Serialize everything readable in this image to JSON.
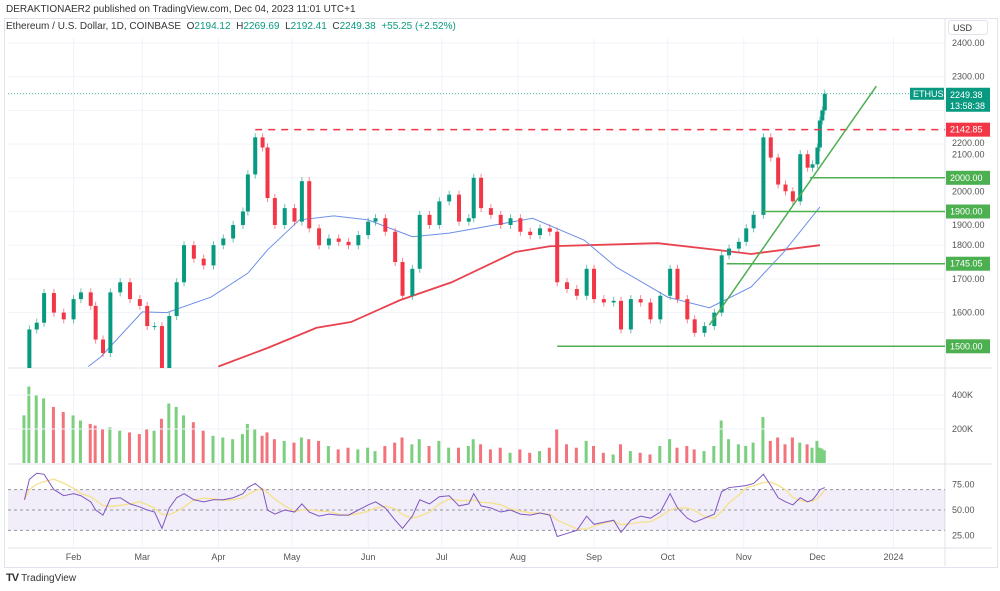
{
  "header": {
    "publisher": "DERAKTIONAER2 published on TradingView.com, Dec 04, 2023 11:01 UTC+1",
    "symbol": "Ethereum / U.S. Dollar, 1D, COINBASE",
    "open_label": "O",
    "open": "2194.12",
    "high_label": "H",
    "high": "2269.69",
    "low_label": "L",
    "low": "2192.41",
    "close_label": "C",
    "close": "2249.38",
    "change": "+55.25 (+2.52%)",
    "currency": "USD"
  },
  "footer": {
    "logo": "TradingView",
    "logo_icon": "tradingview-logo-icon"
  },
  "colors": {
    "up": "#089981",
    "down": "#f23645",
    "ma_fast": "#6d8fe8",
    "ma_slow": "#e8424e",
    "support": "#4caf50",
    "resistance": "#f23645",
    "rsi": "#7e57c2",
    "rsi_ma": "#f7e08a"
  },
  "chart_data": [
    {
      "type": "candlestick",
      "year": 2023,
      "y_ticks": [
        2400,
        2300,
        2200,
        2100,
        2000,
        1900,
        1800,
        1700,
        1600
      ],
      "y_tick_labels": [
        "2400.00",
        "2300.00",
        "2200.00",
        "2100.00",
        "2000.00",
        "1900.00",
        "1800.00",
        "1700.00",
        "1600.00"
      ],
      "ylim": [
        1440,
        2400
      ],
      "x_tick_labels": [
        [
          "02-01",
          "Feb"
        ],
        [
          "03-01",
          "Mar"
        ],
        [
          "04-01",
          "Apr"
        ],
        [
          "05-01",
          "May"
        ],
        [
          "06-01",
          "Jun"
        ],
        [
          "07-01",
          "Jul"
        ],
        [
          "08-01",
          "Aug"
        ],
        [
          "09-01",
          "Sep"
        ],
        [
          "10-01",
          "Oct"
        ],
        [
          "11-01",
          "Nov"
        ],
        [
          "12-01",
          "Dec"
        ],
        [
          "2024-01-01",
          "2024"
        ]
      ],
      "grid": true,
      "closes": [
        [
          "01-12",
          1420
        ],
        [
          "01-14",
          1550
        ],
        [
          "01-17",
          1570
        ],
        [
          "01-20",
          1658
        ],
        [
          "01-24",
          1600
        ],
        [
          "01-28",
          1580
        ],
        [
          "02-01",
          1640
        ],
        [
          "02-04",
          1660
        ],
        [
          "02-08",
          1620
        ],
        [
          "02-10",
          1520
        ],
        [
          "02-13",
          1480
        ],
        [
          "02-16",
          1660
        ],
        [
          "02-20",
          1690
        ],
        [
          "02-24",
          1640
        ],
        [
          "02-28",
          1620
        ],
        [
          "03-03",
          1560
        ],
        [
          "03-06",
          1560
        ],
        [
          "03-09",
          1430
        ],
        [
          "03-12",
          1590
        ],
        [
          "03-15",
          1690
        ],
        [
          "03-18",
          1800
        ],
        [
          "03-22",
          1760
        ],
        [
          "03-26",
          1740
        ],
        [
          "03-30",
          1800
        ],
        [
          "04-03",
          1820
        ],
        [
          "04-07",
          1860
        ],
        [
          "04-11",
          1900
        ],
        [
          "04-13",
          2010
        ],
        [
          "04-16",
          2120
        ],
        [
          "04-19",
          2090
        ],
        [
          "04-21",
          1940
        ],
        [
          "04-24",
          1860
        ],
        [
          "04-28",
          1910
        ],
        [
          "05-02",
          1870
        ],
        [
          "05-05",
          1990
        ],
        [
          "05-08",
          1850
        ],
        [
          "05-12",
          1800
        ],
        [
          "05-16",
          1820
        ],
        [
          "05-20",
          1810
        ],
        [
          "05-24",
          1800
        ],
        [
          "05-28",
          1830
        ],
        [
          "06-01",
          1870
        ],
        [
          "06-04",
          1880
        ],
        [
          "06-08",
          1840
        ],
        [
          "06-12",
          1750
        ],
        [
          "06-15",
          1650
        ],
        [
          "06-19",
          1730
        ],
        [
          "06-22",
          1890
        ],
        [
          "06-26",
          1860
        ],
        [
          "06-30",
          1930
        ],
        [
          "07-04",
          1950
        ],
        [
          "07-08",
          1870
        ],
        [
          "07-12",
          1880
        ],
        [
          "07-14",
          2000
        ],
        [
          "07-17",
          1910
        ],
        [
          "07-21",
          1890
        ],
        [
          "07-25",
          1860
        ],
        [
          "07-29",
          1880
        ],
        [
          "08-02",
          1840
        ],
        [
          "08-06",
          1830
        ],
        [
          "08-10",
          1850
        ],
        [
          "08-14",
          1840
        ],
        [
          "08-17",
          1690
        ],
        [
          "08-21",
          1670
        ],
        [
          "08-25",
          1650
        ],
        [
          "08-29",
          1730
        ],
        [
          "09-01",
          1640
        ],
        [
          "09-05",
          1630
        ],
        [
          "09-09",
          1635
        ],
        [
          "09-12",
          1550
        ],
        [
          "09-16",
          1640
        ],
        [
          "09-20",
          1630
        ],
        [
          "09-24",
          1580
        ],
        [
          "09-28",
          1650
        ],
        [
          "10-02",
          1730
        ],
        [
          "10-05",
          1640
        ],
        [
          "10-09",
          1580
        ],
        [
          "10-12",
          1540
        ],
        [
          "10-16",
          1560
        ],
        [
          "10-20",
          1600
        ],
        [
          "10-23",
          1770
        ],
        [
          "10-26",
          1790
        ],
        [
          "10-30",
          1810
        ],
        [
          "11-02",
          1850
        ],
        [
          "11-05",
          1890
        ],
        [
          "11-09",
          2120
        ],
        [
          "11-12",
          2060
        ],
        [
          "11-15",
          1980
        ],
        [
          "11-18",
          1960
        ],
        [
          "11-21",
          1930
        ],
        [
          "11-24",
          2070
        ],
        [
          "11-27",
          2030
        ],
        [
          "11-29",
          2040
        ],
        [
          "12-01",
          2090
        ],
        [
          "12-02",
          2170
        ],
        [
          "12-03",
          2200
        ],
        [
          "12-04",
          2249.38
        ]
      ],
      "ma_fast": [
        [
          "02-07",
          1440
        ],
        [
          "02-12",
          1468
        ],
        [
          "03-01",
          1602
        ],
        [
          "03-11",
          1600
        ],
        [
          "03-29",
          1646
        ],
        [
          "04-13",
          1717
        ],
        [
          "04-21",
          1786
        ],
        [
          "05-04",
          1875
        ],
        [
          "05-18",
          1887
        ],
        [
          "06-01",
          1875
        ],
        [
          "06-19",
          1825
        ],
        [
          "07-04",
          1836
        ],
        [
          "08-07",
          1880
        ],
        [
          "08-28",
          1815
        ],
        [
          "09-10",
          1735
        ],
        [
          "10-01",
          1646
        ],
        [
          "10-18",
          1614
        ],
        [
          "11-04",
          1676
        ],
        [
          "11-17",
          1777
        ],
        [
          "12-02",
          1913
        ]
      ],
      "ma_slow": [
        [
          "04-01",
          1440
        ],
        [
          "04-21",
          1495
        ],
        [
          "05-11",
          1555
        ],
        [
          "05-25",
          1572
        ],
        [
          "06-14",
          1637
        ],
        [
          "07-05",
          1690
        ],
        [
          "07-31",
          1780
        ],
        [
          "08-14",
          1797
        ],
        [
          "09-27",
          1806
        ],
        [
          "10-21",
          1786
        ],
        [
          "11-04",
          1774
        ],
        [
          "12-02",
          1800
        ]
      ],
      "last_price": {
        "symbol": "ETHUSD",
        "price": "2249.38",
        "countdown": "13:58:38",
        "value": 2249.38
      },
      "levels": [
        {
          "value": 2142.85,
          "label": "2142.85",
          "from": "04-16",
          "style": "dashed",
          "kind": "resistance"
        },
        {
          "value": 2000,
          "label": "2000.00",
          "from": "11-28",
          "style": "solid",
          "kind": "support"
        },
        {
          "value": 1900,
          "label": "1900.00",
          "from": "11-09",
          "style": "solid",
          "kind": "support"
        },
        {
          "value": 1745.05,
          "label": "1745.05",
          "from": "10-25",
          "style": "solid",
          "kind": "support"
        },
        {
          "value": 1500,
          "label": "1500.00",
          "from": "08-17",
          "style": "solid",
          "kind": "support"
        }
      ],
      "trendline": [
        [
          "10-18",
          1563
        ],
        [
          "12-25",
          2272
        ]
      ]
    },
    {
      "type": "bar",
      "name": "volume",
      "y_ticks": [
        400,
        200
      ],
      "y_tick_labels": [
        "400K",
        "200K"
      ],
      "values_k": [
        280,
        450,
        400,
        380,
        330,
        300,
        280,
        250,
        230,
        220,
        200,
        210,
        190,
        180,
        170,
        200,
        190,
        260,
        350,
        330,
        280,
        240,
        190,
        160,
        150,
        140,
        170,
        230,
        200,
        160,
        180,
        140,
        130,
        120,
        150,
        140,
        130,
        100,
        80,
        90,
        80,
        90,
        70,
        100,
        120,
        150,
        110,
        140,
        100,
        130,
        90,
        90,
        100,
        140,
        110,
        80,
        90,
        60,
        80,
        60,
        70,
        90,
        200,
        110,
        90,
        130,
        100,
        60,
        50,
        110,
        70,
        60,
        50,
        100,
        140,
        90,
        100,
        80,
        70,
        100,
        250,
        140,
        110,
        100,
        120,
        270,
        130,
        150,
        110,
        150,
        120,
        110,
        90,
        130,
        90,
        85,
        75
      ]
    },
    {
      "type": "line",
      "name": "rsi",
      "y_ticks": [
        75,
        50,
        25
      ],
      "y_tick_labels": [
        "75.00",
        "50.00",
        "25.00"
      ],
      "bands": [
        70,
        50,
        30
      ],
      "values": [
        60,
        80,
        86,
        85,
        70,
        64,
        66,
        64,
        58,
        50,
        45,
        61,
        62,
        56,
        53,
        50,
        48,
        32,
        52,
        62,
        66,
        60,
        58,
        60,
        60,
        62,
        66,
        72,
        76,
        70,
        50,
        46,
        50,
        48,
        56,
        48,
        44,
        46,
        45,
        45,
        50,
        55,
        58,
        52,
        40,
        32,
        44,
        60,
        56,
        63,
        64,
        54,
        56,
        66,
        54,
        52,
        48,
        50,
        46,
        45,
        47,
        45,
        24,
        27,
        30,
        44,
        36,
        38,
        40,
        28,
        40,
        44,
        42,
        48,
        66,
        52,
        42,
        38,
        42,
        46,
        68,
        72,
        73,
        74,
        76,
        85,
        74,
        62,
        58,
        55,
        62,
        58,
        60,
        66,
        70,
        71,
        72
      ]
    }
  ]
}
